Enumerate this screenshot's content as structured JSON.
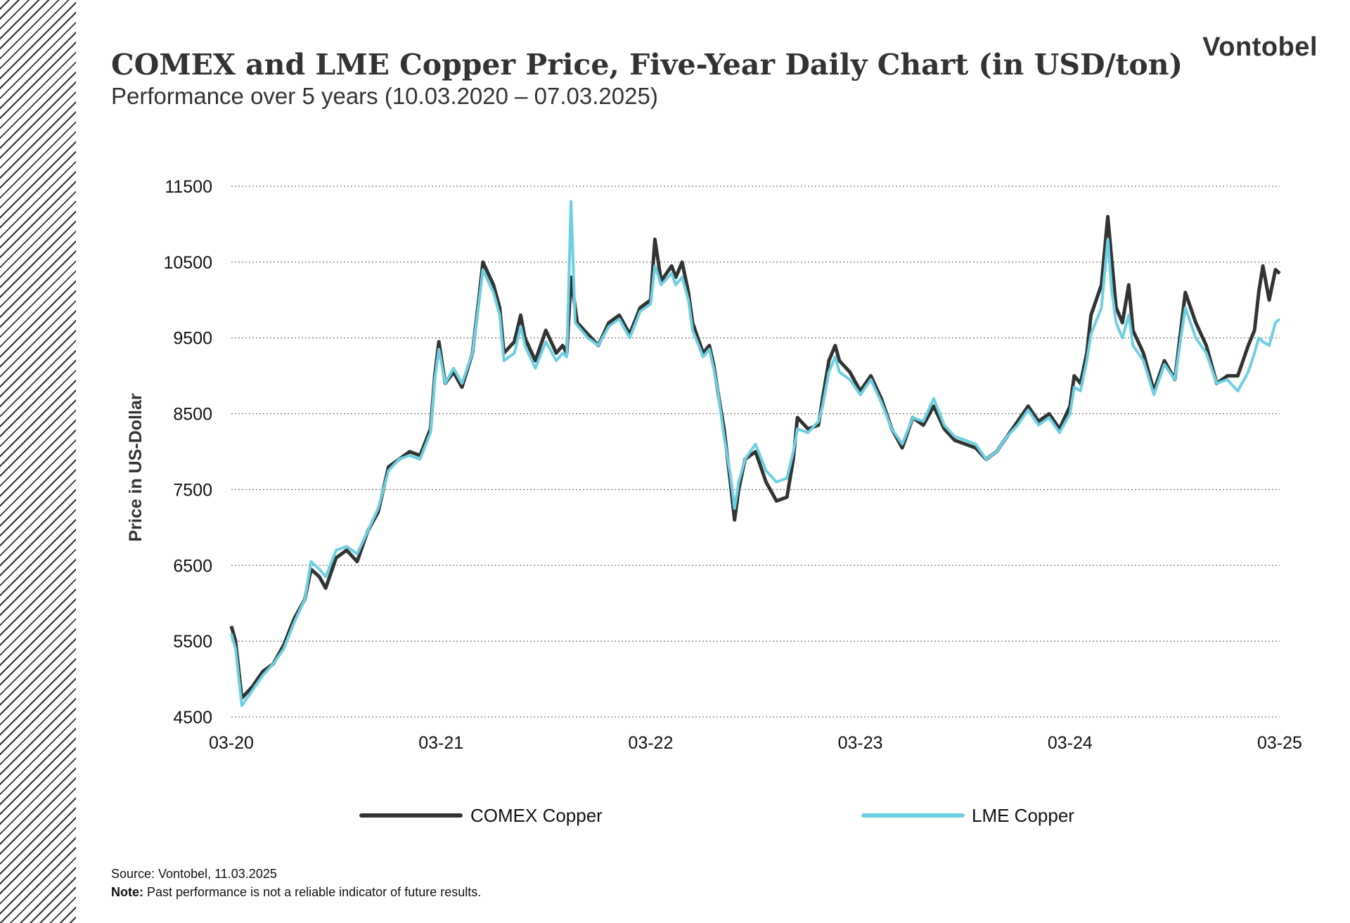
{
  "header": {
    "title": "COMEX and LME Copper Price, Five-Year Daily Chart (in USD/ton)",
    "subtitle": "Performance over 5 years (10.03.2020 – 07.03.2025)",
    "brand": "Vontobel"
  },
  "footer": {
    "source": "Source: Vontobel, 11.03.2025",
    "note_label": "Note:",
    "note_text": " Past performance is not a reliable indicator of future results."
  },
  "chart_data": {
    "type": "line",
    "title": "COMEX and LME Copper Price, Five-Year Daily Chart (in USD/ton)",
    "ylabel": "Price in US-Dollar",
    "xlabel": "",
    "ylim": [
      4500,
      11500
    ],
    "yticks": [
      4500,
      5500,
      6500,
      7500,
      8500,
      9500,
      10500,
      11500
    ],
    "xlim": [
      0,
      5
    ],
    "xticks": [
      {
        "value": 0,
        "label": "03-20"
      },
      {
        "value": 1,
        "label": "03-21"
      },
      {
        "value": 2,
        "label": "03-22"
      },
      {
        "value": 3,
        "label": "03-23"
      },
      {
        "value": 4,
        "label": "03-24"
      },
      {
        "value": 5,
        "label": "03-25"
      }
    ],
    "grid": "horizontal dotted",
    "legend_position": "bottom",
    "series": [
      {
        "name": "COMEX Copper",
        "color": "#303432",
        "points": [
          [
            0.0,
            5700
          ],
          [
            0.02,
            5500
          ],
          [
            0.05,
            4750
          ],
          [
            0.1,
            4900
          ],
          [
            0.15,
            5100
          ],
          [
            0.2,
            5200
          ],
          [
            0.25,
            5450
          ],
          [
            0.3,
            5800
          ],
          [
            0.35,
            6050
          ],
          [
            0.38,
            6450
          ],
          [
            0.42,
            6350
          ],
          [
            0.45,
            6200
          ],
          [
            0.5,
            6600
          ],
          [
            0.55,
            6700
          ],
          [
            0.6,
            6550
          ],
          [
            0.65,
            6950
          ],
          [
            0.7,
            7200
          ],
          [
            0.75,
            7800
          ],
          [
            0.8,
            7900
          ],
          [
            0.85,
            8000
          ],
          [
            0.9,
            7950
          ],
          [
            0.95,
            8300
          ],
          [
            0.97,
            9000
          ],
          [
            0.99,
            9450
          ],
          [
            1.02,
            8900
          ],
          [
            1.06,
            9050
          ],
          [
            1.1,
            8850
          ],
          [
            1.15,
            9300
          ],
          [
            1.18,
            10000
          ],
          [
            1.2,
            10500
          ],
          [
            1.25,
            10200
          ],
          [
            1.28,
            9900
          ],
          [
            1.3,
            9300
          ],
          [
            1.35,
            9450
          ],
          [
            1.38,
            9800
          ],
          [
            1.4,
            9500
          ],
          [
            1.45,
            9200
          ],
          [
            1.5,
            9600
          ],
          [
            1.55,
            9300
          ],
          [
            1.58,
            9400
          ],
          [
            1.6,
            9300
          ],
          [
            1.62,
            10300
          ],
          [
            1.65,
            9700
          ],
          [
            1.7,
            9550
          ],
          [
            1.75,
            9400
          ],
          [
            1.8,
            9700
          ],
          [
            1.85,
            9800
          ],
          [
            1.9,
            9550
          ],
          [
            1.95,
            9900
          ],
          [
            2.0,
            10000
          ],
          [
            2.02,
            10800
          ],
          [
            2.05,
            10250
          ],
          [
            2.1,
            10450
          ],
          [
            2.12,
            10300
          ],
          [
            2.15,
            10500
          ],
          [
            2.18,
            10100
          ],
          [
            2.2,
            9700
          ],
          [
            2.25,
            9300
          ],
          [
            2.28,
            9400
          ],
          [
            2.3,
            9150
          ],
          [
            2.32,
            8800
          ],
          [
            2.35,
            8300
          ],
          [
            2.38,
            7600
          ],
          [
            2.4,
            7100
          ],
          [
            2.42,
            7500
          ],
          [
            2.45,
            7900
          ],
          [
            2.5,
            8000
          ],
          [
            2.55,
            7600
          ],
          [
            2.6,
            7350
          ],
          [
            2.65,
            7400
          ],
          [
            2.68,
            7900
          ],
          [
            2.7,
            8450
          ],
          [
            2.75,
            8300
          ],
          [
            2.8,
            8350
          ],
          [
            2.82,
            8700
          ],
          [
            2.85,
            9200
          ],
          [
            2.88,
            9400
          ],
          [
            2.9,
            9200
          ],
          [
            2.95,
            9050
          ],
          [
            3.0,
            8800
          ],
          [
            3.05,
            9000
          ],
          [
            3.1,
            8700
          ],
          [
            3.15,
            8300
          ],
          [
            3.2,
            8050
          ],
          [
            3.25,
            8450
          ],
          [
            3.3,
            8350
          ],
          [
            3.35,
            8600
          ],
          [
            3.4,
            8300
          ],
          [
            3.45,
            8150
          ],
          [
            3.5,
            8100
          ],
          [
            3.55,
            8050
          ],
          [
            3.6,
            7900
          ],
          [
            3.65,
            8000
          ],
          [
            3.7,
            8200
          ],
          [
            3.75,
            8400
          ],
          [
            3.8,
            8600
          ],
          [
            3.85,
            8400
          ],
          [
            3.9,
            8500
          ],
          [
            3.95,
            8300
          ],
          [
            4.0,
            8600
          ],
          [
            4.02,
            9000
          ],
          [
            4.05,
            8900
          ],
          [
            4.08,
            9300
          ],
          [
            4.1,
            9800
          ],
          [
            4.15,
            10200
          ],
          [
            4.18,
            11100
          ],
          [
            4.2,
            10500
          ],
          [
            4.22,
            9900
          ],
          [
            4.25,
            9700
          ],
          [
            4.28,
            10200
          ],
          [
            4.3,
            9600
          ],
          [
            4.35,
            9300
          ],
          [
            4.4,
            8800
          ],
          [
            4.45,
            9200
          ],
          [
            4.5,
            8950
          ],
          [
            4.55,
            10100
          ],
          [
            4.6,
            9700
          ],
          [
            4.65,
            9400
          ],
          [
            4.7,
            8900
          ],
          [
            4.75,
            9000
          ],
          [
            4.8,
            9000
          ],
          [
            4.85,
            9400
          ],
          [
            4.88,
            9600
          ],
          [
            4.9,
            10100
          ],
          [
            4.92,
            10450
          ],
          [
            4.95,
            10000
          ],
          [
            4.98,
            10400
          ],
          [
            5.0,
            10350
          ]
        ]
      },
      {
        "name": "LME Copper",
        "color": "#6ecfe3",
        "points": [
          [
            0.0,
            5600
          ],
          [
            0.02,
            5400
          ],
          [
            0.05,
            4650
          ],
          [
            0.1,
            4850
          ],
          [
            0.15,
            5050
          ],
          [
            0.2,
            5200
          ],
          [
            0.25,
            5400
          ],
          [
            0.3,
            5750
          ],
          [
            0.35,
            6050
          ],
          [
            0.38,
            6550
          ],
          [
            0.42,
            6450
          ],
          [
            0.45,
            6350
          ],
          [
            0.5,
            6700
          ],
          [
            0.55,
            6750
          ],
          [
            0.6,
            6650
          ],
          [
            0.65,
            6950
          ],
          [
            0.7,
            7250
          ],
          [
            0.75,
            7750
          ],
          [
            0.8,
            7900
          ],
          [
            0.85,
            7950
          ],
          [
            0.9,
            7900
          ],
          [
            0.95,
            8250
          ],
          [
            0.97,
            8950
          ],
          [
            0.99,
            9350
          ],
          [
            1.02,
            8900
          ],
          [
            1.06,
            9100
          ],
          [
            1.1,
            8900
          ],
          [
            1.15,
            9300
          ],
          [
            1.18,
            9950
          ],
          [
            1.2,
            10400
          ],
          [
            1.25,
            10100
          ],
          [
            1.28,
            9800
          ],
          [
            1.3,
            9200
          ],
          [
            1.35,
            9300
          ],
          [
            1.38,
            9650
          ],
          [
            1.4,
            9400
          ],
          [
            1.45,
            9100
          ],
          [
            1.5,
            9450
          ],
          [
            1.55,
            9200
          ],
          [
            1.58,
            9300
          ],
          [
            1.6,
            9250
          ],
          [
            1.62,
            11300
          ],
          [
            1.64,
            9700
          ],
          [
            1.7,
            9500
          ],
          [
            1.75,
            9400
          ],
          [
            1.8,
            9650
          ],
          [
            1.85,
            9750
          ],
          [
            1.9,
            9500
          ],
          [
            1.95,
            9850
          ],
          [
            2.0,
            9950
          ],
          [
            2.02,
            10450
          ],
          [
            2.05,
            10200
          ],
          [
            2.1,
            10350
          ],
          [
            2.12,
            10200
          ],
          [
            2.15,
            10300
          ],
          [
            2.18,
            10000
          ],
          [
            2.2,
            9600
          ],
          [
            2.25,
            9250
          ],
          [
            2.28,
            9350
          ],
          [
            2.3,
            9100
          ],
          [
            2.32,
            8800
          ],
          [
            2.35,
            8200
          ],
          [
            2.38,
            7700
          ],
          [
            2.4,
            7250
          ],
          [
            2.42,
            7600
          ],
          [
            2.45,
            7900
          ],
          [
            2.5,
            8100
          ],
          [
            2.55,
            7750
          ],
          [
            2.6,
            7600
          ],
          [
            2.65,
            7650
          ],
          [
            2.68,
            8000
          ],
          [
            2.7,
            8300
          ],
          [
            2.75,
            8250
          ],
          [
            2.8,
            8400
          ],
          [
            2.82,
            8600
          ],
          [
            2.85,
            9050
          ],
          [
            2.88,
            9250
          ],
          [
            2.9,
            9050
          ],
          [
            2.95,
            8950
          ],
          [
            3.0,
            8750
          ],
          [
            3.05,
            8950
          ],
          [
            3.1,
            8650
          ],
          [
            3.15,
            8300
          ],
          [
            3.2,
            8100
          ],
          [
            3.25,
            8450
          ],
          [
            3.3,
            8400
          ],
          [
            3.35,
            8700
          ],
          [
            3.4,
            8350
          ],
          [
            3.45,
            8200
          ],
          [
            3.5,
            8150
          ],
          [
            3.55,
            8100
          ],
          [
            3.6,
            7900
          ],
          [
            3.65,
            8000
          ],
          [
            3.7,
            8200
          ],
          [
            3.75,
            8350
          ],
          [
            3.8,
            8550
          ],
          [
            3.85,
            8350
          ],
          [
            3.9,
            8450
          ],
          [
            3.95,
            8250
          ],
          [
            4.0,
            8500
          ],
          [
            4.02,
            8850
          ],
          [
            4.05,
            8800
          ],
          [
            4.08,
            9200
          ],
          [
            4.1,
            9550
          ],
          [
            4.15,
            9900
          ],
          [
            4.18,
            10800
          ],
          [
            4.2,
            10100
          ],
          [
            4.22,
            9700
          ],
          [
            4.25,
            9500
          ],
          [
            4.28,
            9800
          ],
          [
            4.3,
            9400
          ],
          [
            4.35,
            9200
          ],
          [
            4.4,
            8750
          ],
          [
            4.45,
            9150
          ],
          [
            4.5,
            8950
          ],
          [
            4.55,
            9900
          ],
          [
            4.6,
            9500
          ],
          [
            4.65,
            9300
          ],
          [
            4.7,
            8900
          ],
          [
            4.75,
            8950
          ],
          [
            4.8,
            8800
          ],
          [
            4.85,
            9050
          ],
          [
            4.88,
            9300
          ],
          [
            4.9,
            9500
          ],
          [
            4.92,
            9450
          ],
          [
            4.95,
            9400
          ],
          [
            4.98,
            9700
          ],
          [
            5.0,
            9750
          ]
        ]
      }
    ]
  }
}
